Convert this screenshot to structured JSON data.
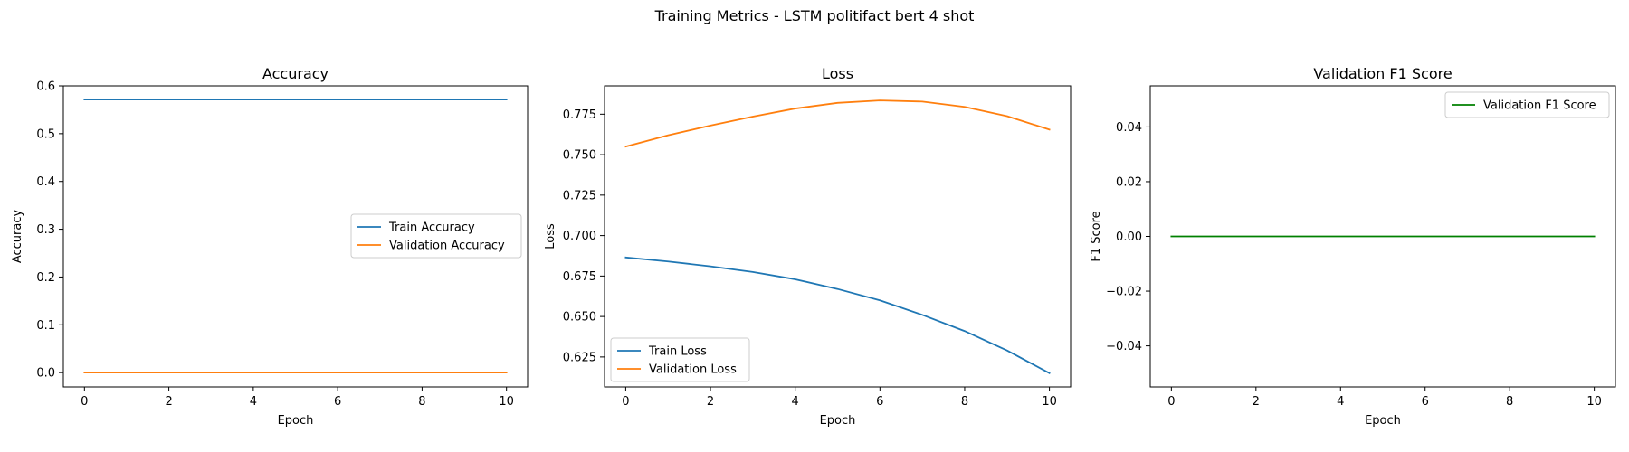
{
  "figure": {
    "suptitle": "Training Metrics - LSTM politifact bert 4 shot"
  },
  "chart_data": [
    {
      "type": "line",
      "title": "Accuracy",
      "xlabel": "Epoch",
      "ylabel": "Accuracy",
      "xlim": [
        -0.5,
        10.5
      ],
      "ylim": [
        -0.03,
        0.6
      ],
      "xticks": [
        0,
        2,
        4,
        6,
        8,
        10
      ],
      "yticks": [
        0.0,
        0.1,
        0.2,
        0.3,
        0.4,
        0.5,
        0.6
      ],
      "ytick_labels": [
        "0.0",
        "0.1",
        "0.2",
        "0.3",
        "0.4",
        "0.5",
        "0.6"
      ],
      "grid": false,
      "legend_position": "center-right",
      "x": [
        0,
        1,
        2,
        3,
        4,
        5,
        6,
        7,
        8,
        9,
        10
      ],
      "series": [
        {
          "name": "Train Accuracy",
          "color": "#1f77b4",
          "values": [
            0.5714,
            0.5714,
            0.5714,
            0.5714,
            0.5714,
            0.5714,
            0.5714,
            0.5714,
            0.5714,
            0.5714,
            0.5714
          ]
        },
        {
          "name": "Validation Accuracy",
          "color": "#ff7f0e",
          "values": [
            0.0,
            0.0,
            0.0,
            0.0,
            0.0,
            0.0,
            0.0,
            0.0,
            0.0,
            0.0,
            0.0
          ]
        }
      ]
    },
    {
      "type": "line",
      "title": "Loss",
      "xlabel": "Epoch",
      "ylabel": "Loss",
      "xlim": [
        -0.5,
        10.5
      ],
      "ylim": [
        0.6065,
        0.7925
      ],
      "xticks": [
        0,
        2,
        4,
        6,
        8,
        10
      ],
      "yticks": [
        0.625,
        0.65,
        0.675,
        0.7,
        0.725,
        0.75,
        0.775
      ],
      "ytick_labels": [
        "0.625",
        "0.650",
        "0.675",
        "0.700",
        "0.725",
        "0.750",
        "0.775"
      ],
      "grid": false,
      "legend_position": "lower-left",
      "x": [
        0,
        1,
        2,
        3,
        4,
        5,
        6,
        7,
        8,
        9,
        10
      ],
      "series": [
        {
          "name": "Train Loss",
          "color": "#1f77b4",
          "values": [
            0.6865,
            0.684,
            0.681,
            0.6775,
            0.673,
            0.667,
            0.66,
            0.651,
            0.641,
            0.629,
            0.615
          ]
        },
        {
          "name": "Validation Loss",
          "color": "#ff7f0e",
          "values": [
            0.755,
            0.762,
            0.768,
            0.7735,
            0.7785,
            0.782,
            0.7835,
            0.7828,
            0.7795,
            0.7738,
            0.7655
          ]
        }
      ]
    },
    {
      "type": "line",
      "title": "Validation F1 Score",
      "xlabel": "Epoch",
      "ylabel": "F1 Score",
      "xlim": [
        -0.5,
        10.5
      ],
      "ylim": [
        -0.055,
        0.055
      ],
      "xticks": [
        0,
        2,
        4,
        6,
        8,
        10
      ],
      "yticks": [
        -0.04,
        -0.02,
        0.0,
        0.02,
        0.04
      ],
      "ytick_labels": [
        "−0.04",
        "−0.02",
        "0.00",
        "0.02",
        "0.04"
      ],
      "grid": false,
      "legend_position": "upper-right",
      "x": [
        0,
        1,
        2,
        3,
        4,
        5,
        6,
        7,
        8,
        9,
        10
      ],
      "series": [
        {
          "name": "Validation F1 Score",
          "color": "#008000",
          "values": [
            0,
            0,
            0,
            0,
            0,
            0,
            0,
            0,
            0,
            0,
            0
          ]
        }
      ]
    }
  ]
}
